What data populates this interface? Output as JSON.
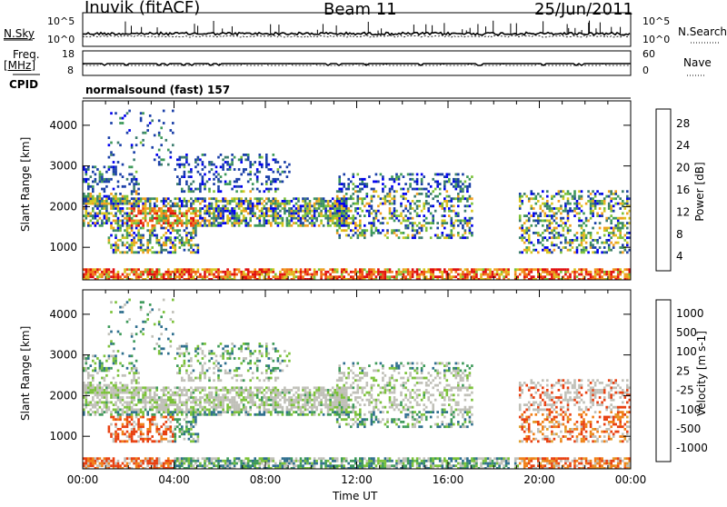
{
  "header": {
    "station": "Inuvik (fitACF)",
    "beam": "Beam 11",
    "date": "25/Jun/2011"
  },
  "side_labels": {
    "nsky": "N.Sky",
    "freq": "Freq.",
    "freq_unit": "[MHz]",
    "cpid": "CPID",
    "nsearch": "N.Search",
    "nave": "Nave"
  },
  "scales": {
    "nsky_top": "10^5",
    "nsky_bottom": "10^0",
    "freq_top": "18",
    "freq_bottom": "8",
    "nave_top": "60",
    "nave_bottom": "0"
  },
  "cpid_text": "normalsound (fast) 157",
  "colors": {
    "power": [
      "#0000f0",
      "#1a3fa8",
      "#3c7d6e",
      "#3e9a5a",
      "#7cc23a",
      "#d8c61e",
      "#f0a020",
      "#f07a18",
      "#f05010",
      "#e01010"
    ],
    "velocity": [
      "#1a3fa8",
      "#2f6f8e",
      "#3e9a5a",
      "#7cc23a",
      "#c0c0b8",
      "#e0a030",
      "#f08018",
      "#e84010",
      "#e01010"
    ]
  },
  "chart_data": [
    {
      "type": "heatmap",
      "name": "power",
      "ylabel": "Slant Range [km]",
      "yticks": [
        1000,
        2000,
        3000,
        4000
      ],
      "ylim": [
        200,
        4600
      ],
      "xticks": [
        "00:00",
        "04:00",
        "08:00",
        "12:00",
        "16:00",
        "20:00",
        "00:00"
      ],
      "xlim_hours": [
        0,
        24
      ],
      "colorbar_label": "Power [dB]",
      "colorbar_ticks": [
        "28",
        "24",
        "20",
        "16",
        "12",
        "8",
        "4"
      ],
      "colorbar_range": [
        0,
        30
      ]
    },
    {
      "type": "heatmap",
      "name": "velocity",
      "ylabel": "Slant Range [km]",
      "yticks": [
        1000,
        2000,
        3000,
        4000
      ],
      "ylim": [
        200,
        4600
      ],
      "xticks": [
        "00:00",
        "04:00",
        "08:00",
        "12:00",
        "16:00",
        "20:00",
        "00:00"
      ],
      "xlim_hours": [
        0,
        24
      ],
      "xlabel": "Time UT",
      "colorbar_label": "Velocity [m s-1]",
      "colorbar_ticks": [
        "1000",
        "500",
        "100",
        "25",
        "-25",
        "-100",
        "-500",
        "-1000"
      ]
    }
  ]
}
